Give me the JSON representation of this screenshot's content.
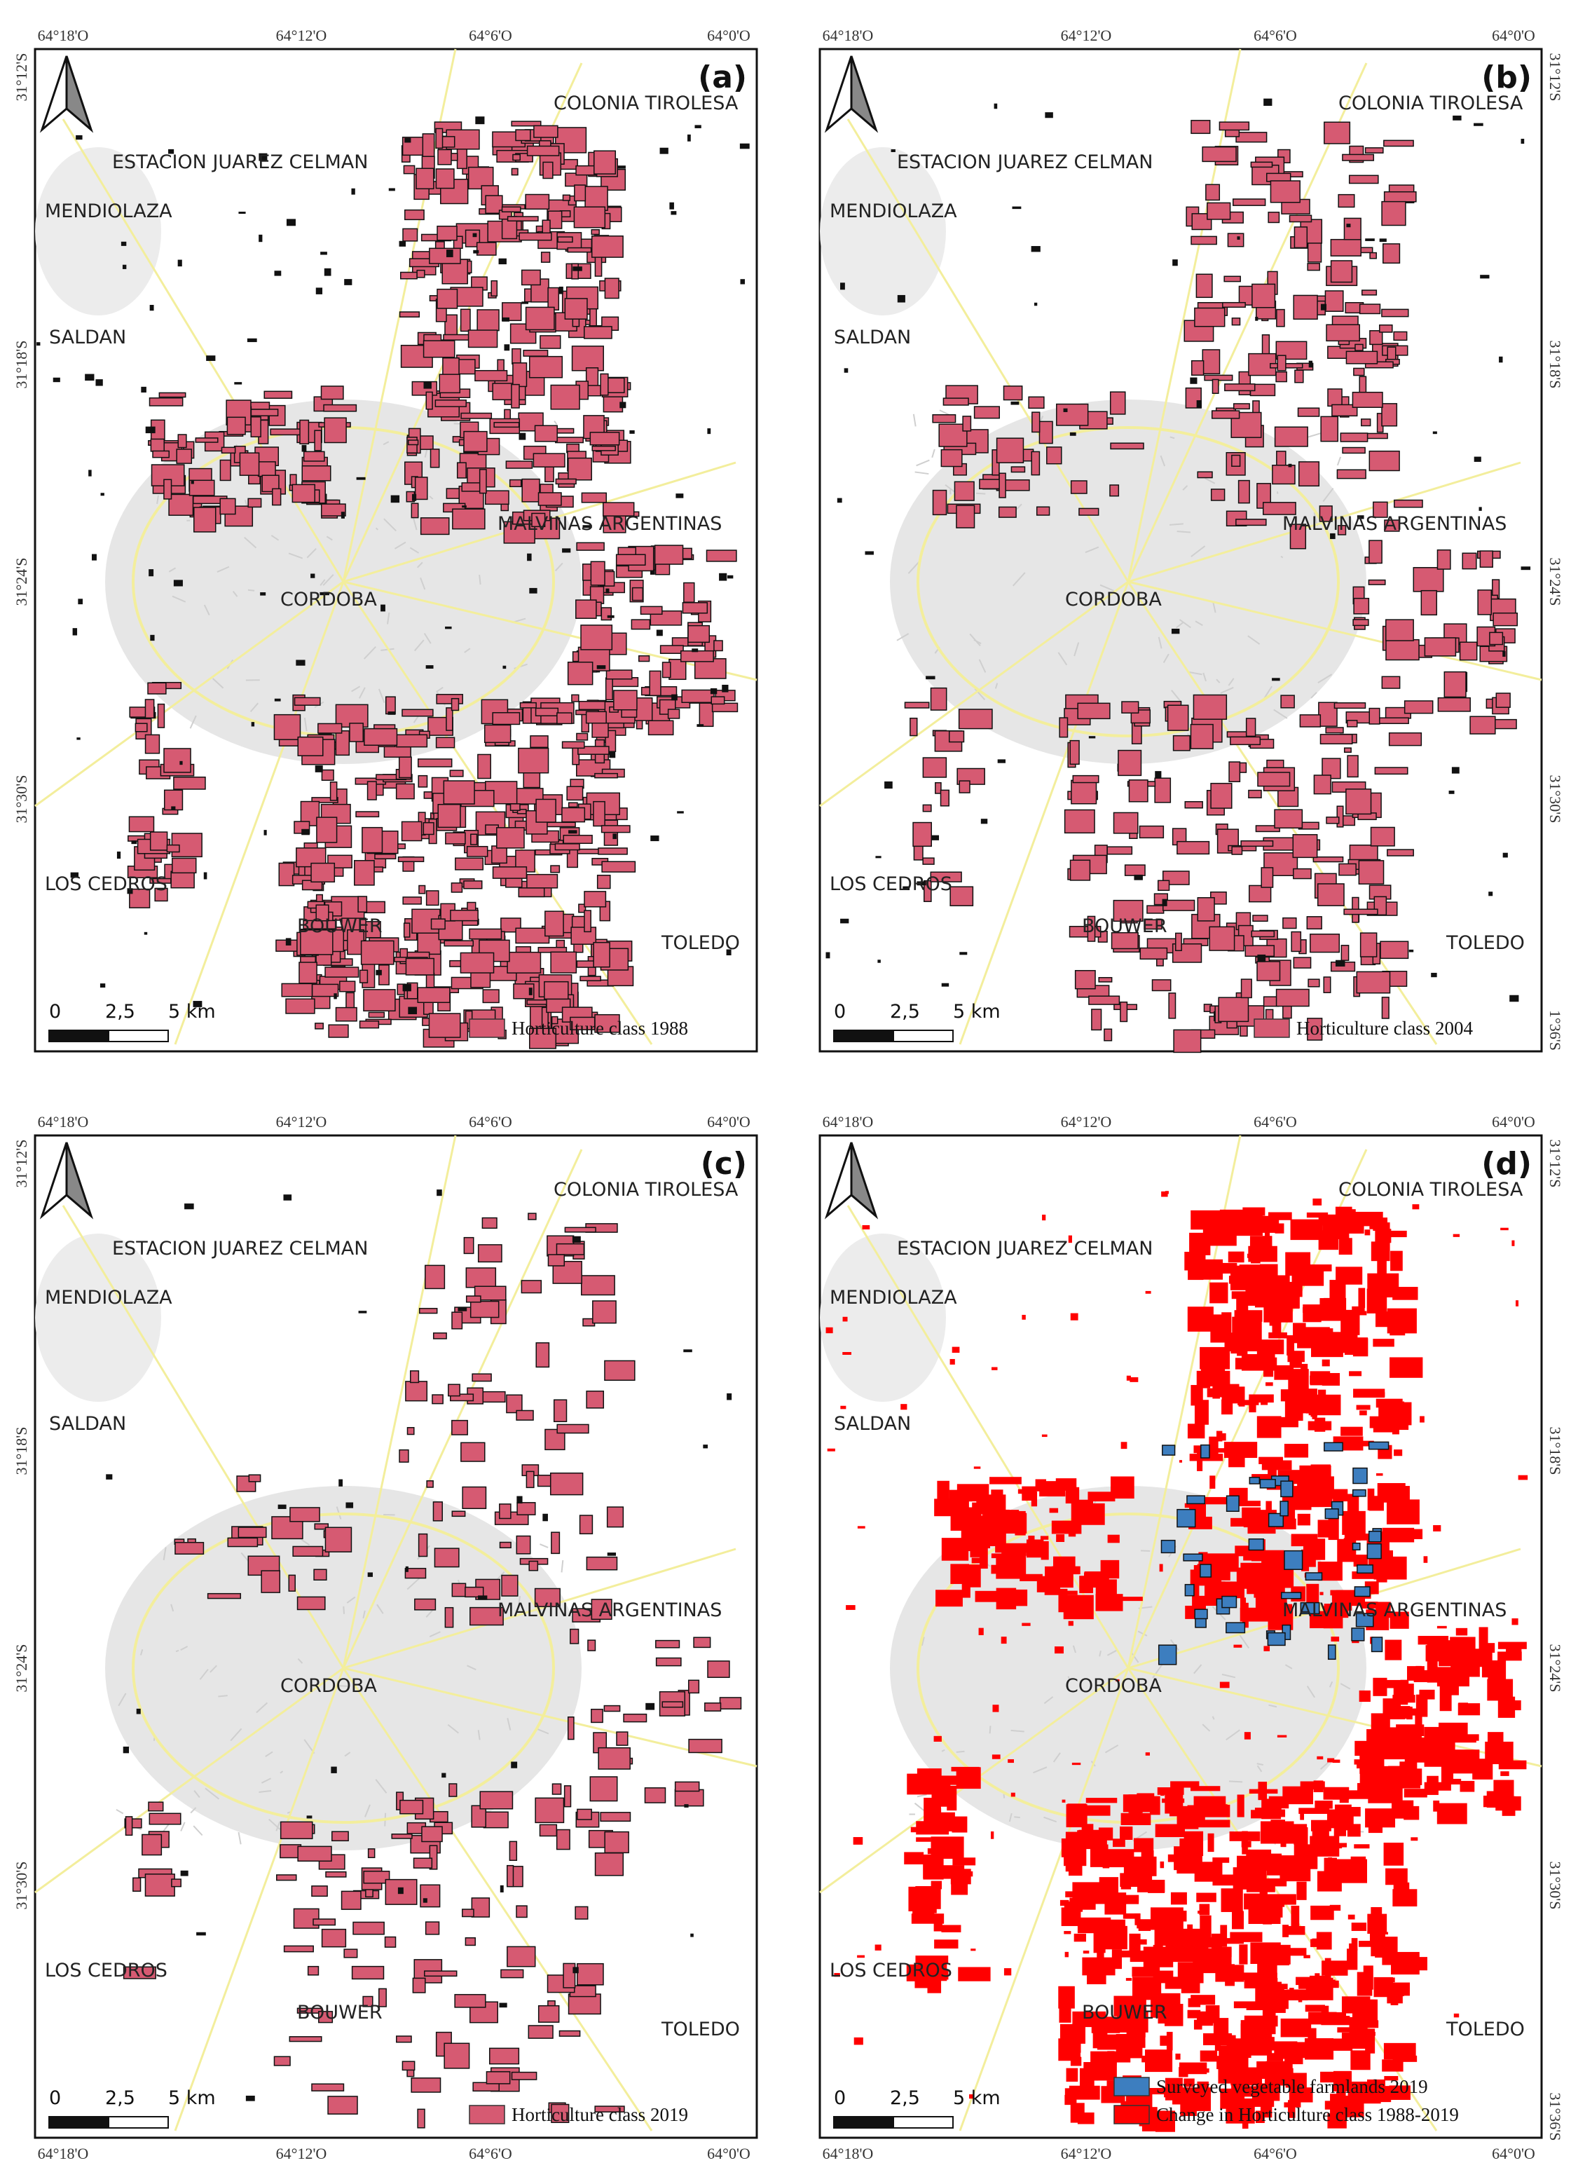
{
  "panels": [
    {
      "label": "(a)",
      "places": [
        "COLONIA TIROLESA",
        "ESTACION JUAREZ CELMAN",
        "MENDIOLAZA",
        "SALDAN",
        "MALVINAS ARGENTINAS",
        "CORDOBA",
        "LOS CEDROS",
        "BOUWER",
        "TOLEDO"
      ],
      "legend": [
        {
          "text": "Horticulture class 1988",
          "color": "#d65a72"
        }
      ],
      "scale": [
        "0",
        "2,5",
        "5 km"
      ],
      "coords": {
        "top": [
          "64°18'O",
          "64°12'O",
          "64°6'O",
          "64°0'O"
        ],
        "left": [
          "31°12'S",
          "31°18'S",
          "31°24'S",
          "31°30'S"
        ]
      }
    },
    {
      "label": "(b)",
      "places": [
        "COLONIA TIROLESA",
        "ESTACION JUAREZ CELMAN",
        "MENDIOLAZA",
        "SALDAN",
        "MALVINAS ARGENTINAS",
        "CORDOBA",
        "LOS CEDROS",
        "BOUWER",
        "TOLEDO"
      ],
      "legend": [
        {
          "text": "Horticulture class 2004",
          "color": "#d65a72"
        }
      ],
      "scale": [
        "0",
        "2,5",
        "5 km"
      ],
      "coords": {
        "top": [
          "64°18'O",
          "64°12'O",
          "64°6'O",
          "64°0'O"
        ],
        "right": [
          "31°12'S",
          "31°18'S",
          "31°24'S",
          "31°30'S",
          "1°36'S"
        ]
      }
    },
    {
      "label": "(c)",
      "places": [
        "COLONIA TIROLESA",
        "ESTACION JUAREZ CELMAN",
        "MENDIOLAZA",
        "SALDAN",
        "MALVINAS ARGENTINAS",
        "CORDOBA",
        "LOS CEDROS",
        "BOUWER",
        "TOLEDO"
      ],
      "legend": [
        {
          "text": "Horticulture class 2019",
          "color": "#d65a72"
        }
      ],
      "scale": [
        "0",
        "2,5",
        "5 km"
      ],
      "coords": {
        "top": [
          "64°18'O",
          "64°12'O",
          "64°6'O",
          "64°0'O"
        ],
        "left": [
          "31°12'S",
          "31°18'S",
          "31°24'S",
          "31°30'S"
        ],
        "bottom": [
          "64°18'O",
          "64°12'O",
          "64°6'O",
          "64°0'O"
        ]
      }
    },
    {
      "label": "(d)",
      "places": [
        "COLONIA TIROLESA",
        "ESTACION JUAREZ CELMAN",
        "MENDIOLAZA",
        "SALDAN",
        "MALVINAS ARGENTINAS",
        "CORDOBA",
        "LOS CEDROS",
        "BOUWER",
        "TOLEDO"
      ],
      "legend": [
        {
          "text": "Surveyed vegetable farmlands 2019",
          "color": "#3d7ebf"
        },
        {
          "text": "Change in Horticulture class 1988-2019",
          "color": "#ff0000"
        }
      ],
      "scale": [
        "0",
        "2,5",
        "5 km"
      ],
      "coords": {
        "top": [
          "64°18'O",
          "64°12'O",
          "64°6'O",
          "64°0'O"
        ],
        "right": [
          "31°12'S",
          "31°18'S",
          "31°24'S",
          "31°30'S",
          "31°36'S"
        ],
        "bottom": [
          "64°18'O",
          "64°12'O",
          "64°6'O",
          "64°0'O"
        ]
      }
    }
  ]
}
